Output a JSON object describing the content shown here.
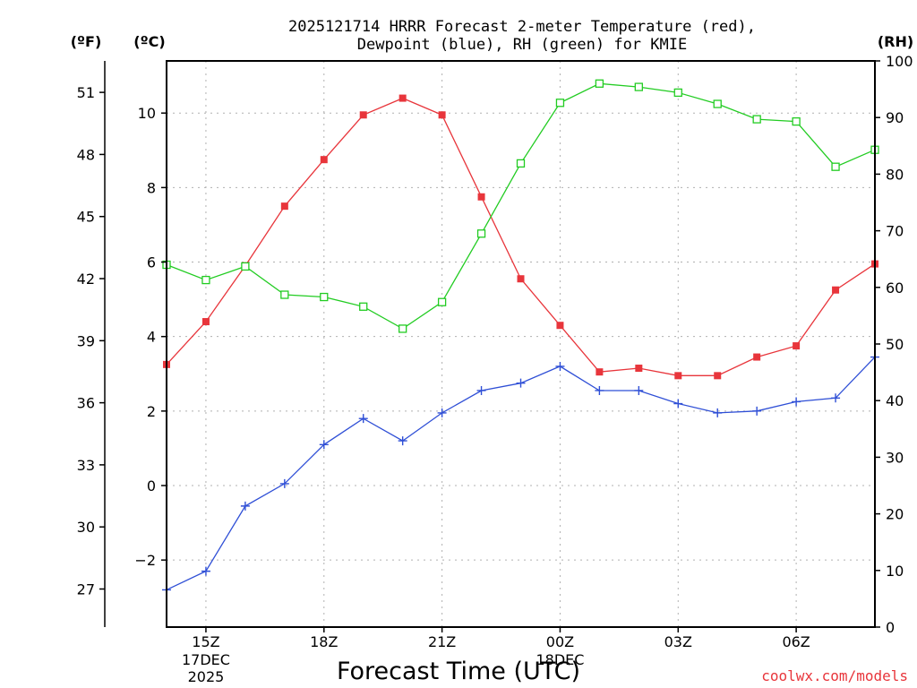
{
  "chart_data": {
    "type": "line",
    "title_line1": "2025121714 HRRR Forecast 2-meter Temperature (red),",
    "title_line2": "Dewpoint (blue), RH (green) for KMIE",
    "xlabel": "Forecast Time (UTC)",
    "credit": "coolwx.com/models",
    "unit_f": "(ºF)",
    "unit_c": "(ºC)",
    "unit_rh": "(RH)",
    "x_hours": [
      14,
      15,
      16,
      17,
      18,
      19,
      20,
      21,
      22,
      23,
      24,
      25,
      26,
      27,
      28,
      29,
      30,
      31,
      32
    ],
    "xlim": [
      14,
      32
    ],
    "x_ticks": [
      {
        "hour": 15,
        "label": "15Z",
        "sub1": "17DEC",
        "sub2": "2025"
      },
      {
        "hour": 18,
        "label": "18Z",
        "sub1": "",
        "sub2": ""
      },
      {
        "hour": 21,
        "label": "21Z",
        "sub1": "",
        "sub2": ""
      },
      {
        "hour": 24,
        "label": "00Z",
        "sub1": "18DEC",
        "sub2": ""
      },
      {
        "hour": 27,
        "label": "03Z",
        "sub1": "",
        "sub2": ""
      },
      {
        "hour": 30,
        "label": "06Z",
        "sub1": "",
        "sub2": ""
      }
    ],
    "y_celsius": {
      "ylim": [
        -3.8,
        11.4
      ],
      "ticks": [
        -2,
        0,
        2,
        4,
        6,
        8,
        10
      ],
      "tick_labels": [
        "−2",
        "0",
        "2",
        "4",
        "6",
        "8",
        "10"
      ]
    },
    "y_fahrenheit": {
      "ylim": [
        25.16,
        52.52
      ],
      "ticks": [
        27,
        30,
        33,
        36,
        39,
        42,
        45,
        48,
        51
      ],
      "tick_labels": [
        "27",
        "30",
        "33",
        "36",
        "39",
        "42",
        "45",
        "48",
        "51"
      ]
    },
    "y_rh": {
      "ylim": [
        0,
        100
      ],
      "ticks": [
        0,
        10,
        20,
        30,
        40,
        50,
        60,
        70,
        80,
        90,
        100
      ],
      "tick_labels": [
        "0",
        "10",
        "20",
        "30",
        "40",
        "50",
        "60",
        "70",
        "80",
        "90",
        "100"
      ]
    },
    "series": [
      {
        "name": "Temperature",
        "units": "C",
        "axis": "celsius",
        "color": "#e8353b",
        "marker": "filled-square",
        "values": [
          3.25,
          4.4,
          5.9,
          7.5,
          8.75,
          9.95,
          10.4,
          9.95,
          7.75,
          5.55,
          4.3,
          3.05,
          3.15,
          2.95,
          2.95,
          3.45,
          3.75,
          5.25,
          5.95
        ]
      },
      {
        "name": "Dewpoint",
        "units": "C",
        "axis": "celsius",
        "color": "#2f4fd6",
        "marker": "plus",
        "values": [
          -2.8,
          -2.3,
          -0.55,
          0.05,
          1.1,
          1.8,
          1.2,
          1.95,
          2.55,
          2.75,
          3.2,
          2.55,
          2.55,
          2.2,
          1.95,
          2.0,
          2.25,
          2.35,
          3.45
        ]
      },
      {
        "name": "RH",
        "units": "%",
        "axis": "rh",
        "color": "#22cc22",
        "marker": "open-square",
        "values": [
          64.0,
          61.3,
          63.7,
          58.7,
          58.3,
          56.6,
          52.7,
          57.4,
          69.5,
          81.9,
          92.6,
          96.0,
          95.4,
          94.4,
          92.4,
          89.7,
          89.3,
          81.3,
          84.3
        ]
      }
    ]
  }
}
